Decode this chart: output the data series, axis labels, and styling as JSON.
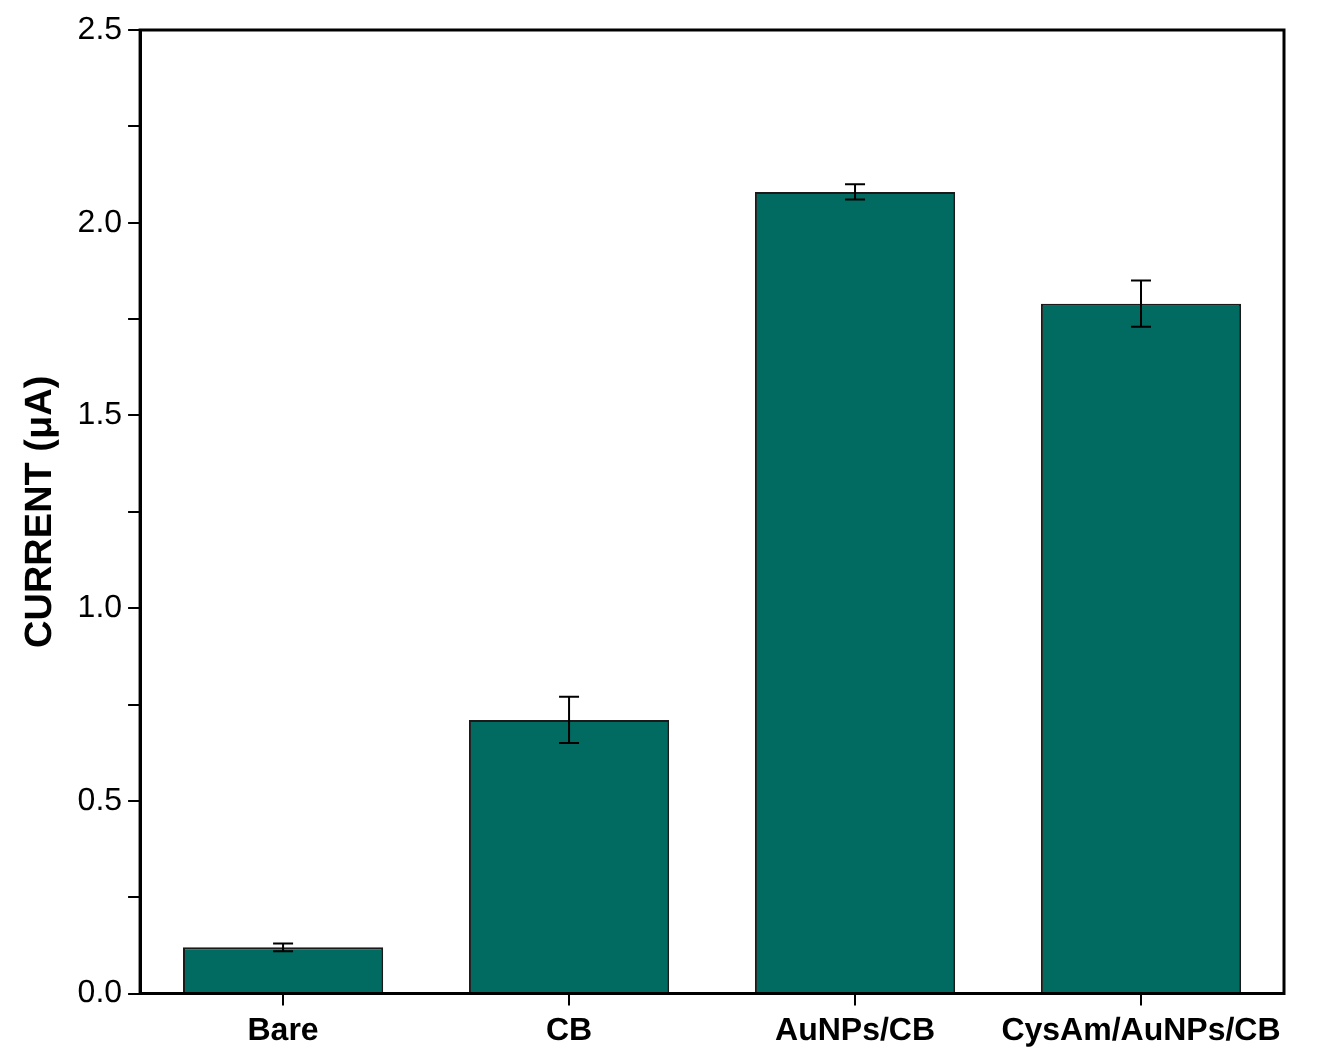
{
  "chart_data": {
    "type": "bar",
    "ylabel": "CURRENT (μA)",
    "categories": [
      "Bare",
      "CB",
      "AuNPs/CB",
      "CysAm/AuNPs/CB"
    ],
    "values": [
      0.12,
      0.71,
      2.08,
      1.79
    ],
    "errors": [
      0.01,
      0.06,
      0.02,
      0.06
    ],
    "color": "#016a61",
    "ylim": [
      0,
      2.5
    ],
    "yticks": [
      "0.0",
      {
        "value": 0.25,
        "label": null
      },
      0.5,
      {
        "value": 0.75,
        "label": null
      },
      "1.0",
      {
        "value": 1.25,
        "label": null
      },
      1.5,
      {
        "value": 1.75,
        "label": null
      },
      "2.0",
      {
        "value": 2.25,
        "label": null
      },
      2.5
    ],
    "grid": false,
    "legend": false
  }
}
